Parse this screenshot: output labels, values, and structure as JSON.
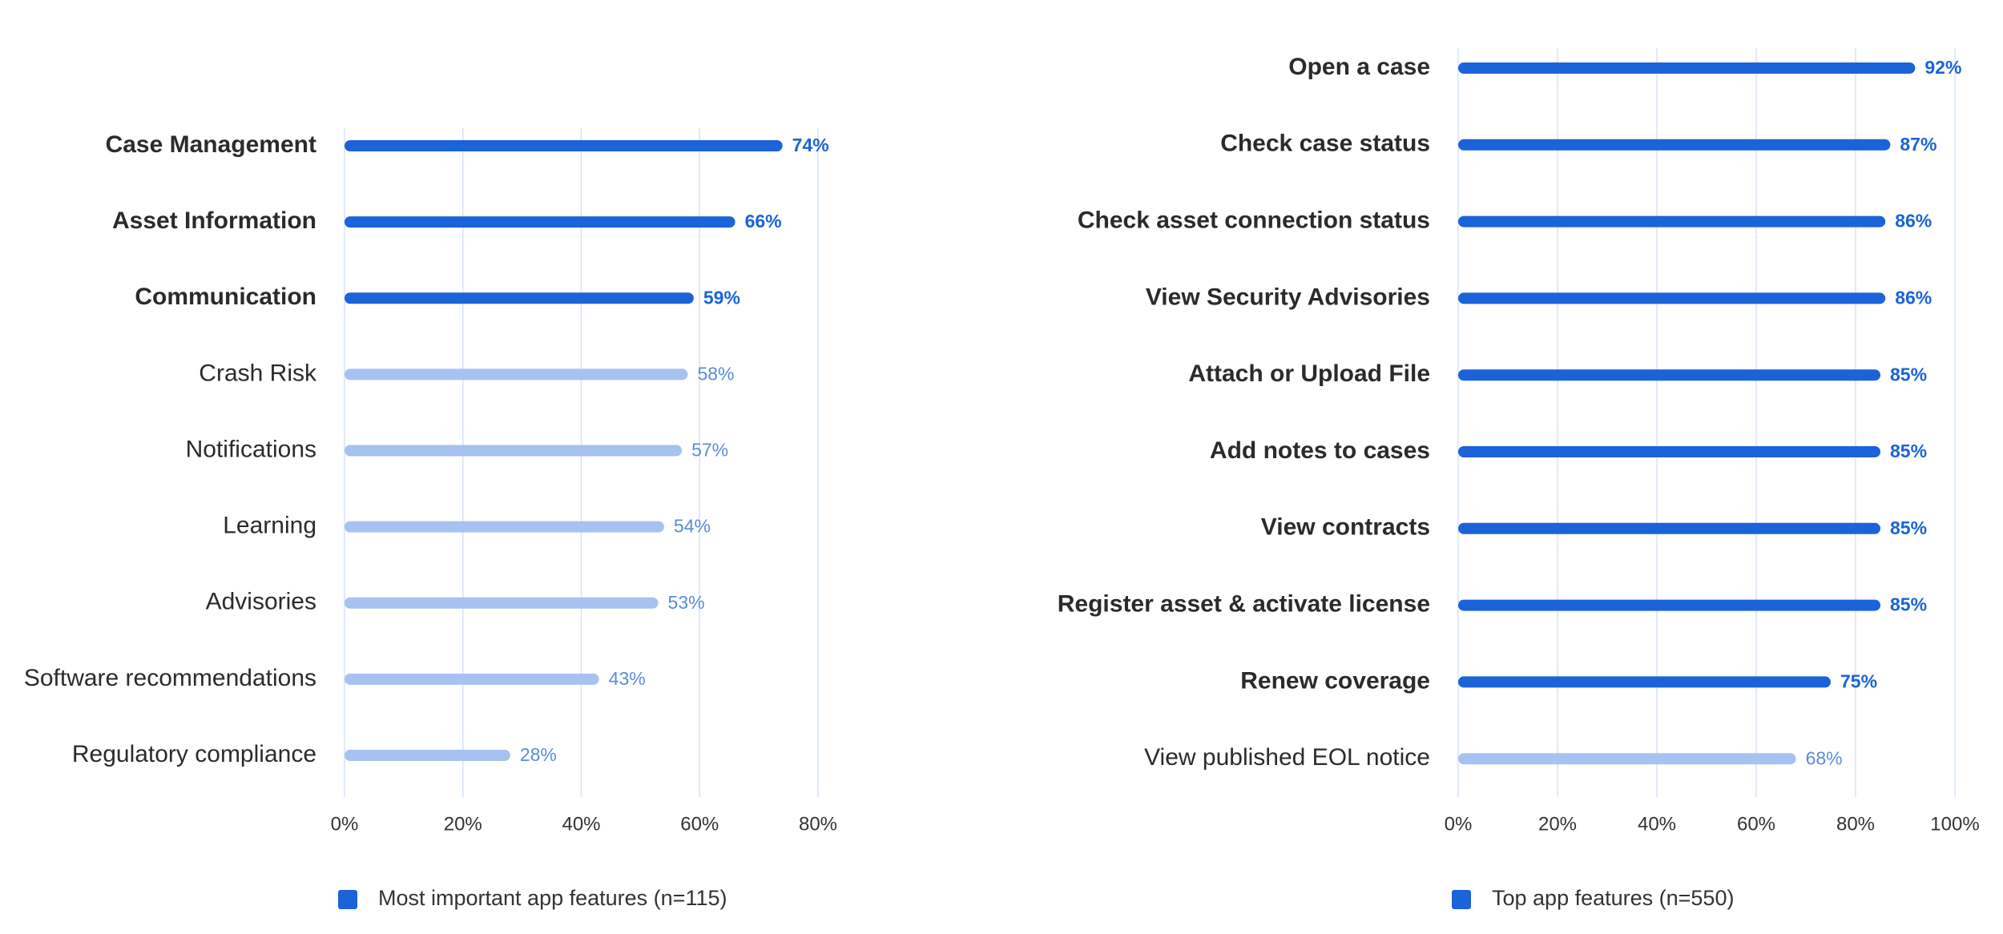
{
  "colors": {
    "highlight": "#1b63d8",
    "muted": "#a6c2f0",
    "muted_text": "#5b8bdc",
    "grid": "#d6e3f7",
    "label": "#2b2b2b"
  },
  "chart_data": [
    {
      "type": "bar",
      "orientation": "horizontal",
      "categories": [
        "Case Management",
        "Asset Information",
        "Communication",
        "Crash Risk",
        "Notifications",
        "Learning",
        "Advisories",
        "Software recommendations",
        "Regulatory compliance"
      ],
      "values": [
        74,
        66,
        59,
        58,
        57,
        54,
        53,
        43,
        28
      ],
      "value_labels": [
        "74%",
        "66%",
        "59%",
        "58%",
        "57%",
        "54%",
        "53%",
        "43%",
        "28%"
      ],
      "highlighted": [
        true,
        true,
        true,
        false,
        false,
        false,
        false,
        false,
        false
      ],
      "xlim": [
        0,
        80
      ],
      "ticks": [
        0,
        20,
        40,
        60,
        80
      ],
      "tick_labels": [
        "0%",
        "20%",
        "40%",
        "60%",
        "80%"
      ],
      "legend": "Most important app features (n=115)",
      "grid": true
    },
    {
      "type": "bar",
      "orientation": "horizontal",
      "categories": [
        "Open a case",
        "Check case status",
        "Check asset connection status",
        "View Security Advisories",
        "Attach or Upload File",
        "Add notes to cases",
        "View contracts",
        "Register asset & activate license",
        "Renew coverage",
        "View published EOL notice"
      ],
      "values": [
        92,
        87,
        86,
        86,
        85,
        85,
        85,
        85,
        75,
        68
      ],
      "value_labels": [
        "92%",
        "87%",
        "86%",
        "86%",
        "85%",
        "85%",
        "85%",
        "85%",
        "75%",
        "68%"
      ],
      "highlighted": [
        true,
        true,
        true,
        true,
        true,
        true,
        true,
        true,
        true,
        false
      ],
      "xlim": [
        0,
        100
      ],
      "ticks": [
        0,
        20,
        40,
        60,
        80,
        100
      ],
      "tick_labels": [
        "0%",
        "20%",
        "40%",
        "60%",
        "80%",
        "100%"
      ],
      "legend": "Top app features (n=550)",
      "grid": true
    }
  ]
}
